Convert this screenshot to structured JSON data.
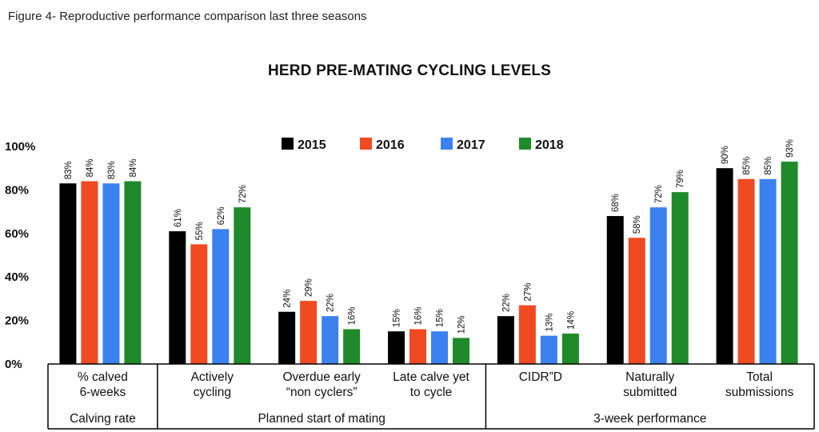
{
  "caption": "Figure 4- Reproductive performance comparison last three seasons",
  "chart_data": {
    "type": "bar",
    "title": "HERD PRE-MATING CYCLING LEVELS",
    "ylim": [
      0,
      100
    ],
    "y_ticks": [
      "0%",
      "20%",
      "40%",
      "60%",
      "80%",
      "100%"
    ],
    "grid": false,
    "legend_position": "top-center",
    "categories": [
      [
        "% calved",
        "6-weeks"
      ],
      [
        "Actively",
        "cycling"
      ],
      [
        "Overdue early",
        "“non cyclers”"
      ],
      [
        "Late calve yet",
        "to cycle"
      ],
      [
        "CIDR”D"
      ],
      [
        "Naturally",
        "submitted"
      ],
      [
        "Total",
        "submissions"
      ]
    ],
    "groups": [
      {
        "label": "Calving rate",
        "categories": [
          0
        ]
      },
      {
        "label": "Planned start of mating",
        "categories": [
          1,
          2,
          3
        ]
      },
      {
        "label": "3-week performance",
        "categories": [
          4,
          5,
          6
        ]
      }
    ],
    "series": [
      {
        "name": "2015",
        "color": "#000000",
        "values": [
          83,
          61,
          24,
          15,
          22,
          68,
          90
        ]
      },
      {
        "name": "2016",
        "color": "#f04a22",
        "values": [
          84,
          55,
          29,
          16,
          27,
          58,
          85
        ]
      },
      {
        "name": "2017",
        "color": "#3b82f0",
        "values": [
          83,
          62,
          22,
          15,
          13,
          72,
          85
        ]
      },
      {
        "name": "2018",
        "color": "#1f8a2a",
        "values": [
          84,
          72,
          16,
          12,
          14,
          79,
          93
        ]
      }
    ],
    "value_suffix": "%"
  }
}
